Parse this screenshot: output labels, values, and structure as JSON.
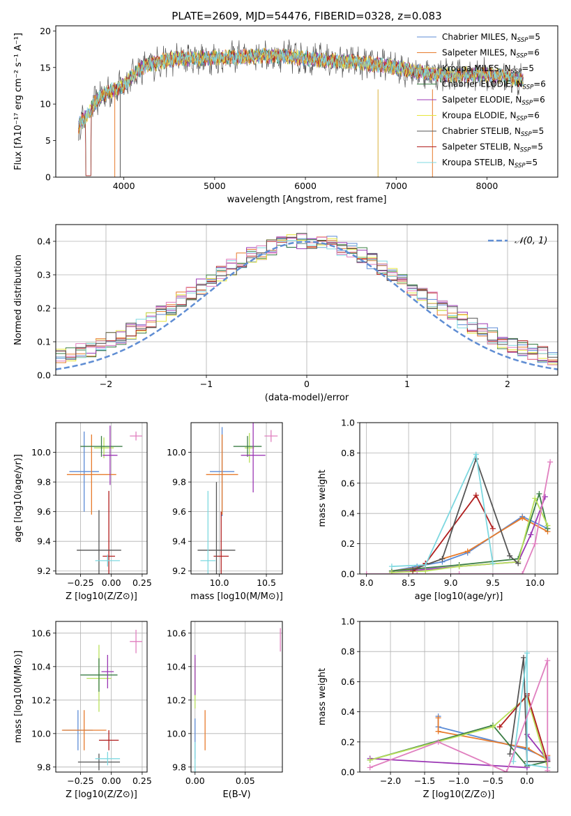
{
  "figure": {
    "title": "PLATE=2609, MJD=54476, FIBERID=0328, z=0.083"
  },
  "colors": {
    "Chabrier MILES": "#5b8bd6",
    "Salpeter MILES": "#e77b2c",
    "Kroupa MILES": "#d8b13a",
    "Chabrier ELODIE": "#3a7d44",
    "Salpeter ELODIE": "#9b37b4",
    "Kroupa ELODIE": "#e6e63a",
    "Chabrier STELIB": "#555555",
    "Salpeter STELIB": "#b01d1d",
    "Kroupa STELIB": "#7ed8e0",
    "extra_pink": "#e07fbf",
    "extra_lime": "#b8e05a",
    "normal_curve": "#5f8dd3"
  },
  "chart_data": [
    {
      "id": "spectrum",
      "type": "line",
      "xlabel": "wavelength [Angstrom, rest frame]",
      "ylabel": "Flux [fλ10⁻¹⁷ erg cm⁻² s⁻¹ A⁻¹]",
      "xlim": [
        3250,
        8780
      ],
      "ylim": [
        0,
        20.7
      ],
      "xticks": [
        4000,
        5000,
        6000,
        7000,
        8000
      ],
      "yticks": [
        0,
        5,
        10,
        15,
        20
      ],
      "legend": "top-right",
      "legend_entries": [
        "Chabrier MILES, N_SSP=5",
        "Salpeter MILES, N_SSP=6",
        "Kroupa MILES, N_SSP=5",
        "Chabrier ELODIE, N_SSP=6",
        "Salpeter ELODIE, N_SSP=6",
        "Kroupa ELODIE, N_SSP=6",
        "Chabrier STELIB, N_SSP=5",
        "Salpeter STELIB, N_SSP=5",
        "Kroupa STELIB, N_SSP=5"
      ],
      "legend_display": [
        {
          "name": "Chabrier MILES, N",
          "sub": "SSP",
          "tail": "=5"
        },
        {
          "name": "Salpeter MILES, N",
          "sub": "SSP",
          "tail": "=6"
        },
        {
          "name": "Kroupa MILES, N",
          "sub": "SSP",
          "tail": "=5"
        },
        {
          "name": "Chabrier ELODIE, N",
          "sub": "SSP",
          "tail": "=6"
        },
        {
          "name": "Salpeter ELODIE, N",
          "sub": "SSP",
          "tail": "=6"
        },
        {
          "name": "Kroupa ELODIE, N",
          "sub": "SSP",
          "tail": "=6"
        },
        {
          "name": "Chabrier STELIB, N",
          "sub": "SSP",
          "tail": "=5"
        },
        {
          "name": "Salpeter STELIB, N",
          "sub": "SSP",
          "tail": "=5"
        },
        {
          "name": "Kroupa STELIB, N",
          "sub": "SSP",
          "tail": "=5"
        }
      ],
      "continuum_x": [
        3500,
        3600,
        3700,
        3800,
        3900,
        4000,
        4100,
        4200,
        4400,
        4600,
        4800,
        5000,
        5200,
        5400,
        5600,
        5800,
        6000,
        6200,
        6400,
        6600,
        6800,
        7000,
        7200,
        7400,
        7600,
        7800,
        8000,
        8200,
        8400
      ],
      "continuum_y": [
        7,
        8.5,
        10.5,
        11.5,
        12,
        12.5,
        14,
        15,
        15.8,
        16.3,
        16.2,
        16.3,
        16.4,
        16.5,
        16.6,
        16.5,
        16.3,
        16.0,
        15.8,
        15.6,
        15.4,
        15.0,
        14.5,
        14.2,
        14.0,
        14.0,
        14.0,
        13.8,
        13.2
      ],
      "data_range": [
        3500,
        8400
      ]
    },
    {
      "id": "residuals",
      "type": "histogram",
      "xlabel": "(data-model)/error",
      "ylabel": "Normed distribution",
      "xlim": [
        -2.5,
        2.5
      ],
      "ylim": [
        0,
        0.45
      ],
      "xticks": [
        -2,
        -1,
        0,
        1,
        2
      ],
      "yticks": [
        0.0,
        0.1,
        0.2,
        0.3,
        0.4
      ],
      "legend": "top-right",
      "legend_label": "𝒩(0, 1)",
      "bin_width": 0.1,
      "grid": true
    },
    {
      "id": "age_vs_Z",
      "type": "errorbar",
      "xlabel": "Z [log10(Z/Z⊙)]",
      "ylabel": "age [log10(age/yr)]",
      "xlim": [
        -0.45,
        0.29
      ],
      "ylim": [
        9.18,
        10.2
      ],
      "xticks": [
        -0.25,
        0.0,
        0.25
      ],
      "yticks": [
        9.2,
        9.4,
        9.6,
        9.8,
        10.0
      ],
      "points": [
        {
          "c": "Chabrier MILES",
          "x": -0.22,
          "y": 9.87,
          "xerr": 0.12,
          "yerr": 0.27
        },
        {
          "c": "Salpeter MILES",
          "x": -0.16,
          "y": 9.85,
          "xerr": 0.2,
          "yerr": 0.27
        },
        {
          "c": "extra_lime",
          "x": -0.06,
          "y": 10.03,
          "xerr": 0.08,
          "yerr": 0.07
        },
        {
          "c": "Chabrier ELODIE",
          "x": -0.08,
          "y": 10.04,
          "xerr": 0.17,
          "yerr": 0.07
        },
        {
          "c": "Salpeter ELODIE",
          "x": -0.01,
          "y": 9.98,
          "xerr": 0.06,
          "yerr": 0.2
        },
        {
          "c": "Salpeter STELIB",
          "x": -0.02,
          "y": 9.3,
          "xerr": 0.05,
          "yerr": 0.44
        },
        {
          "c": "Chabrier STELIB",
          "x": -0.1,
          "y": 9.34,
          "xerr": 0.18,
          "yerr": 0.27
        },
        {
          "c": "Kroupa STELIB",
          "x": -0.03,
          "y": 9.27,
          "xerr": 0.1,
          "yerr": 0.04
        },
        {
          "c": "extra_pink",
          "x": 0.2,
          "y": 10.11,
          "xerr": 0.05,
          "yerr": 0.03
        }
      ]
    },
    {
      "id": "age_vs_mass",
      "type": "errorbar",
      "xlabel": "mass [log10(M/M⊙)]",
      "ylabel": "",
      "xlim": [
        9.7,
        10.67
      ],
      "ylim": [
        9.18,
        10.2
      ],
      "xticks": [
        10.0,
        10.5
      ],
      "yticks": [
        9.2,
        9.4,
        9.6,
        9.8,
        10.0
      ],
      "points": [
        {
          "c": "Chabrier MILES",
          "x": 10.03,
          "y": 9.87,
          "xerr": 0.13,
          "yerr": 0.3
        },
        {
          "c": "Salpeter MILES",
          "x": 10.03,
          "y": 9.85,
          "xerr": 0.17,
          "yerr": 0.27
        },
        {
          "c": "extra_lime",
          "x": 10.32,
          "y": 10.03,
          "xerr": 0.05,
          "yerr": 0.1
        },
        {
          "c": "Chabrier ELODIE",
          "x": 10.3,
          "y": 10.04,
          "xerr": 0.15,
          "yerr": 0.07
        },
        {
          "c": "Salpeter ELODIE",
          "x": 10.36,
          "y": 9.98,
          "xerr": 0.13,
          "yerr": 0.25
        },
        {
          "c": "Salpeter STELIB",
          "x": 10.02,
          "y": 9.3,
          "xerr": 0.08,
          "yerr": 0.3
        },
        {
          "c": "Chabrier STELIB",
          "x": 9.97,
          "y": 9.34,
          "xerr": 0.2,
          "yerr": 0.46
        },
        {
          "c": "Kroupa STELIB",
          "x": 9.88,
          "y": 9.27,
          "xerr": 0.08,
          "yerr": 0.47
        },
        {
          "c": "extra_pink",
          "x": 10.55,
          "y": 10.11,
          "xerr": 0.07,
          "yerr": 0.04
        }
      ]
    },
    {
      "id": "massweight_vs_age",
      "type": "line",
      "xlabel": "age [log10(age/yr)]",
      "ylabel": "mass weight",
      "xlim": [
        7.92,
        10.27
      ],
      "ylim": [
        0,
        1
      ],
      "xticks": [
        8.0,
        8.5,
        9.0,
        9.5,
        10.0
      ],
      "yticks": [
        0.0,
        0.2,
        0.4,
        0.6,
        0.8,
        1.0
      ],
      "series": [
        {
          "c": "Chabrier MILES",
          "x": [
            8.3,
            8.6,
            8.9,
            9.2,
            9.85,
            10.15
          ],
          "y": [
            0.02,
            0.05,
            0.08,
            0.14,
            0.38,
            0.3
          ]
        },
        {
          "c": "Salpeter MILES",
          "x": [
            8.3,
            8.6,
            8.9,
            9.2,
            9.85,
            10.15
          ],
          "y": [
            0.02,
            0.04,
            0.1,
            0.15,
            0.37,
            0.28
          ]
        },
        {
          "c": "Chabrier ELODIE",
          "x": [
            8.3,
            8.7,
            9.1,
            9.8,
            10.05,
            10.15
          ],
          "y": [
            0.02,
            0.04,
            0.06,
            0.1,
            0.53,
            0.3
          ]
        },
        {
          "c": "Salpeter ELODIE",
          "x": [
            8.3,
            8.7,
            9.1,
            9.8,
            9.95,
            10.12
          ],
          "y": [
            0.01,
            0.03,
            0.05,
            0.08,
            0.26,
            0.51
          ]
        },
        {
          "c": "extra_lime",
          "x": [
            8.3,
            8.7,
            9.1,
            9.8,
            10.0,
            10.15
          ],
          "y": [
            0.01,
            0.02,
            0.05,
            0.08,
            0.5,
            0.32
          ]
        },
        {
          "c": "Salpeter STELIB",
          "x": [
            8.55,
            8.7,
            9.3,
            9.5
          ],
          "y": [
            0.02,
            0.07,
            0.52,
            0.3
          ]
        },
        {
          "c": "Chabrier STELIB",
          "x": [
            8.55,
            8.9,
            9.3,
            9.7,
            9.8
          ],
          "y": [
            0.03,
            0.1,
            0.76,
            0.12,
            0.07
          ]
        },
        {
          "c": "Kroupa STELIB",
          "x": [
            8.3,
            8.7,
            9.3,
            9.5
          ],
          "y": [
            0.05,
            0.06,
            0.79,
            0.07
          ]
        },
        {
          "c": "extra_pink",
          "x": [
            8.0,
            8.6,
            9.1,
            9.85,
            10.0,
            10.18
          ],
          "y": [
            0.0,
            0.0,
            0.0,
            0.0,
            0.2,
            0.74
          ]
        }
      ]
    },
    {
      "id": "mass_vs_Z",
      "type": "errorbar",
      "xlabel": "Z [log10(Z/Z⊙)]",
      "ylabel": "mass [log10(M/M⊙)]",
      "xlim": [
        -0.45,
        0.29
      ],
      "ylim": [
        9.77,
        10.67
      ],
      "xticks": [
        -0.25,
        0.0,
        0.25
      ],
      "yticks": [
        9.8,
        10.0,
        10.2,
        10.4,
        10.6
      ],
      "points": [
        {
          "c": "Chabrier MILES",
          "x": -0.27,
          "y": 10.02,
          "xerr": 0.12,
          "yerr": 0.12
        },
        {
          "c": "Salpeter MILES",
          "x": -0.22,
          "y": 10.02,
          "xerr": 0.18,
          "yerr": 0.12
        },
        {
          "c": "extra_lime",
          "x": -0.1,
          "y": 10.33,
          "xerr": 0.1,
          "yerr": 0.2
        },
        {
          "c": "Chabrier ELODIE",
          "x": -0.1,
          "y": 10.35,
          "xerr": 0.15,
          "yerr": 0.1
        },
        {
          "c": "Salpeter ELODIE",
          "x": -0.03,
          "y": 10.37,
          "xerr": 0.05,
          "yerr": 0.1
        },
        {
          "c": "Salpeter STELIB",
          "x": -0.02,
          "y": 9.96,
          "xerr": 0.08,
          "yerr": 0.06
        },
        {
          "c": "Chabrier STELIB",
          "x": -0.1,
          "y": 9.83,
          "xerr": 0.17,
          "yerr": 0.05
        },
        {
          "c": "Kroupa STELIB",
          "x": -0.03,
          "y": 9.85,
          "xerr": 0.1,
          "yerr": 0.04
        },
        {
          "c": "extra_pink",
          "x": 0.2,
          "y": 10.55,
          "xerr": 0.05,
          "yerr": 0.07
        }
      ]
    },
    {
      "id": "mass_vs_EBV",
      "type": "errorbar",
      "xlabel": "E(B-V)",
      "ylabel": "",
      "xlim": [
        -0.004,
        0.087
      ],
      "ylim": [
        9.77,
        10.67
      ],
      "xticks": [
        0.0,
        0.05
      ],
      "yticks": [
        9.8,
        10.0,
        10.2,
        10.4,
        10.6
      ],
      "points": [
        {
          "c": "Chabrier MILES",
          "x": 0.0,
          "y": 9.97,
          "xerr": 0,
          "yerr": 0.12
        },
        {
          "c": "Salpeter MILES",
          "x": 0.01,
          "y": 10.02,
          "xerr": 0,
          "yerr": 0.12
        },
        {
          "c": "extra_lime",
          "x": 0.0,
          "y": 10.3,
          "xerr": 0,
          "yerr": 0.15
        },
        {
          "c": "Salpeter ELODIE",
          "x": 0.0,
          "y": 10.35,
          "xerr": 0,
          "yerr": 0.12
        },
        {
          "c": "Kroupa STELIB",
          "x": 0.0,
          "y": 9.86,
          "xerr": 0,
          "yerr": 0.09
        },
        {
          "c": "extra_pink",
          "x": 0.085,
          "y": 10.56,
          "xerr": 0,
          "yerr": 0.07
        }
      ]
    },
    {
      "id": "massweight_vs_Z",
      "type": "line",
      "xlabel": "Z [log10(Z/Z⊙)]",
      "ylabel": "mass weight",
      "xlim": [
        -2.45,
        0.45
      ],
      "ylim": [
        0,
        1
      ],
      "xticks": [
        -2.0,
        -1.5,
        -1.0,
        -0.5,
        0.0
      ],
      "yticks": [
        0.0,
        0.2,
        0.4,
        0.6,
        0.8,
        1.0
      ],
      "series": [
        {
          "c": "Chabrier MILES",
          "x": [
            -1.3,
            -1.3,
            -0.0,
            0.3,
            0.3
          ],
          "y": [
            0.37,
            0.3,
            0.15,
            0.09,
            0.1
          ]
        },
        {
          "c": "Salpeter MILES",
          "x": [
            -1.3,
            -1.3,
            -0.0,
            0.3,
            0.3
          ],
          "y": [
            0.36,
            0.27,
            0.16,
            0.08,
            0.11
          ]
        },
        {
          "c": "Chabrier ELODIE",
          "x": [
            -2.3,
            -0.5,
            -0.0,
            0.3
          ],
          "y": [
            0.08,
            0.31,
            0.04,
            0.07
          ]
        },
        {
          "c": "Salpeter ELODIE",
          "x": [
            -2.3,
            -0.0,
            0.0,
            0.3
          ],
          "y": [
            0.09,
            0.03,
            0.25,
            0.08
          ]
        },
        {
          "c": "extra_lime",
          "x": [
            -2.3,
            -0.5,
            0.0,
            0.3
          ],
          "y": [
            0.08,
            0.3,
            0.5,
            0.03
          ]
        },
        {
          "c": "Salpeter STELIB",
          "x": [
            -0.4,
            -0.0,
            0.0,
            0.3
          ],
          "y": [
            0.3,
            0.51,
            0.52,
            0.07
          ]
        },
        {
          "c": "Chabrier STELIB",
          "x": [
            -0.25,
            -0.05,
            0.0,
            0.3
          ],
          "y": [
            0.12,
            0.76,
            0.07,
            0.07
          ]
        },
        {
          "c": "Kroupa STELIB",
          "x": [
            -0.2,
            0.0,
            0.0,
            0.3
          ],
          "y": [
            0.07,
            0.79,
            0.05,
            0.03
          ]
        },
        {
          "c": "extra_pink",
          "x": [
            -2.3,
            -1.3,
            -0.3,
            0.3,
            0.3
          ],
          "y": [
            0.03,
            0.2,
            0.0,
            0.74,
            0.01
          ]
        }
      ]
    }
  ]
}
